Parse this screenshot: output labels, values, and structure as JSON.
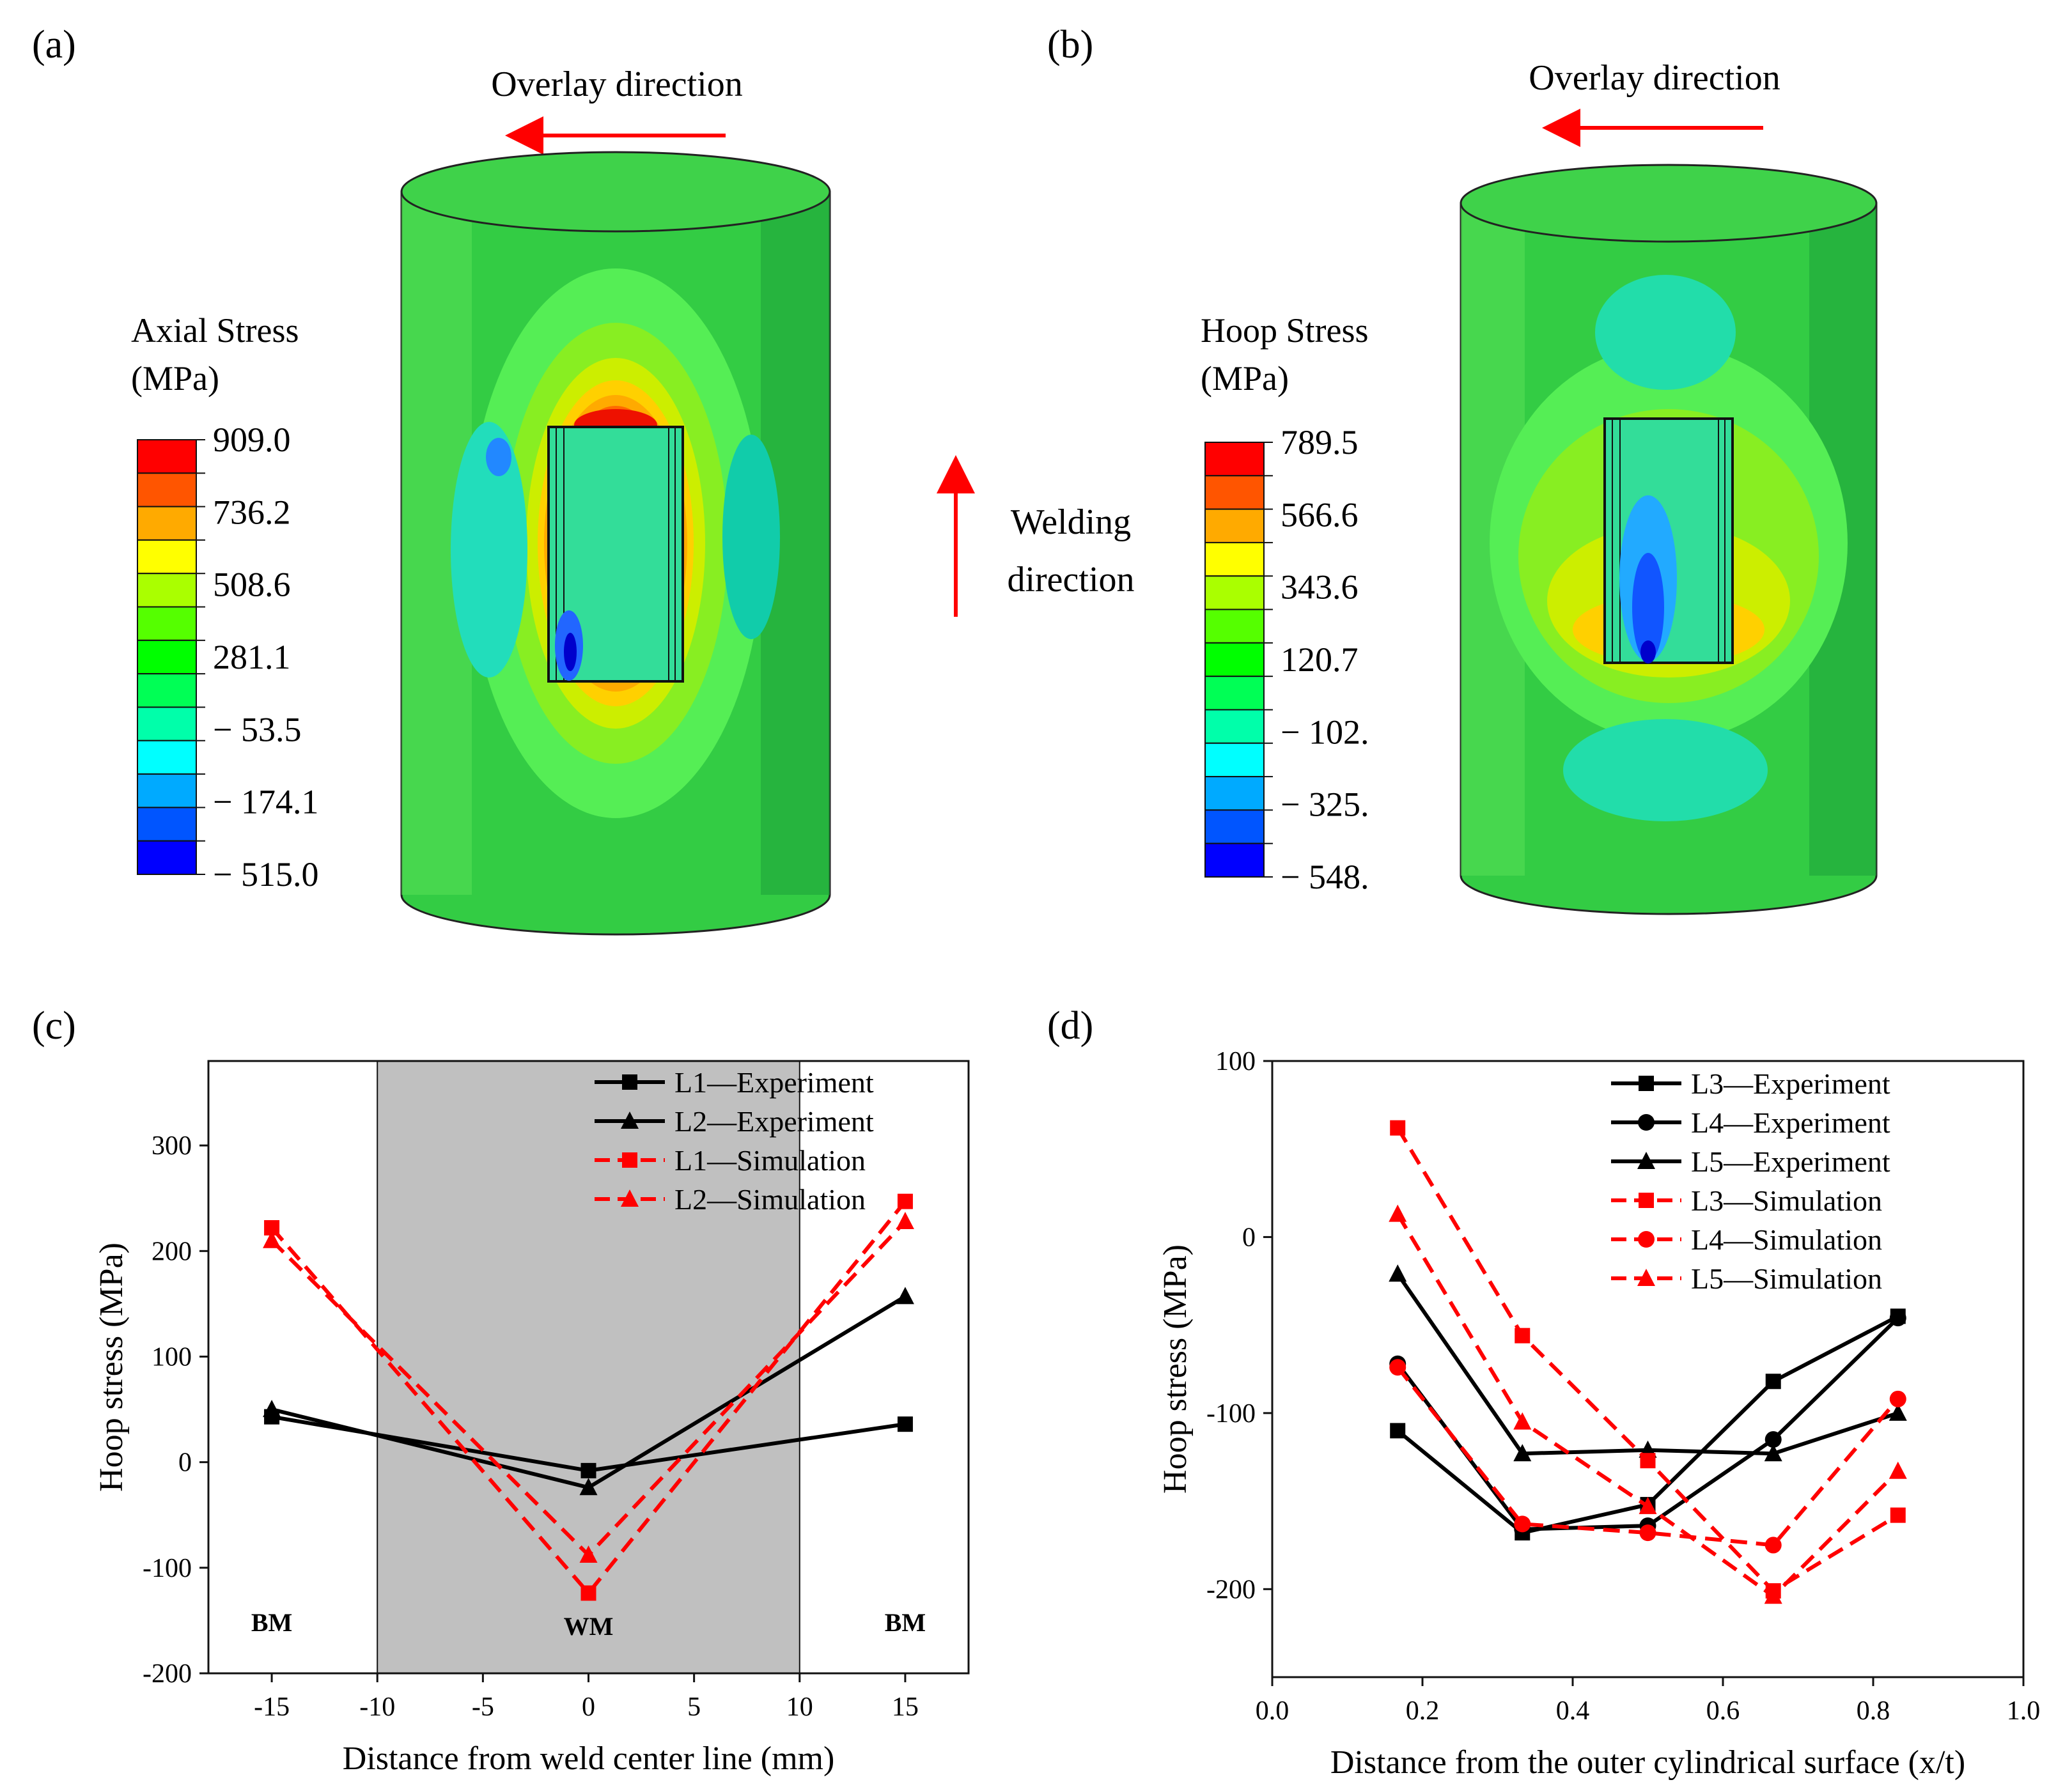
{
  "panels": {
    "a": {
      "label": "(a)",
      "arrow_text": "Overlay direction",
      "legend_title": [
        "Axial Stress",
        "(MPa)"
      ],
      "legend_values": [
        "909.0",
        "736.2",
        "508.6",
        "281.1",
        "− 53.5",
        "− 174.1",
        "− 515.0"
      ],
      "welding_text": [
        "Welding",
        "direction"
      ]
    },
    "b": {
      "label": "(b)",
      "arrow_text": "Overlay direction",
      "legend_title": [
        "Hoop Stress",
        "(MPa)"
      ],
      "legend_values": [
        "789.5",
        "566.6",
        "343.6",
        "120.7",
        "− 102.",
        "− 325.",
        "− 548."
      ]
    },
    "c": {
      "label": "(c)",
      "regions": [
        "BM",
        "WM",
        "BM"
      ]
    },
    "d": {
      "label": "(d)"
    }
  },
  "colors": {
    "contour": [
      "#ff0000",
      "#ff5500",
      "#ffaa00",
      "#ffff00",
      "#aaff00",
      "#55ff00",
      "#00ff00",
      "#00ff55",
      "#00ffaa",
      "#00ffff",
      "#00aaff",
      "#0055ff",
      "#0000ff"
    ],
    "cylinder": "#4fcf4f",
    "experiment": "#000000",
    "simulation": "#ff0000",
    "arrow": "#ff0000",
    "shade": "#c0c0c0"
  },
  "chart_data": [
    {
      "id": "c",
      "type": "line",
      "xlabel": "Distance from weld center line (mm)",
      "ylabel": "Hoop stress (MPa)",
      "xlim": [
        -18,
        18
      ],
      "ylim": [
        -200,
        380
      ],
      "xticks": [
        -15,
        -10,
        -5,
        0,
        5,
        10,
        15
      ],
      "yticks": [
        -200,
        -100,
        0,
        100,
        200,
        300
      ],
      "shaded_x": [
        -10,
        10
      ],
      "series": [
        {
          "name": "L1—Experiment",
          "marker": "square",
          "dash": false,
          "color": "#000000",
          "x": [
            -15,
            0,
            15
          ],
          "y": [
            43,
            -8,
            36
          ]
        },
        {
          "name": "L2—Experiment",
          "marker": "triangle",
          "dash": false,
          "color": "#000000",
          "x": [
            -15,
            0,
            15
          ],
          "y": [
            50,
            -24,
            157
          ]
        },
        {
          "name": "L1—Simulation",
          "marker": "square",
          "dash": true,
          "color": "#ff0000",
          "x": [
            -15,
            0,
            15
          ],
          "y": [
            222,
            -124,
            247
          ]
        },
        {
          "name": "L2—Simulation",
          "marker": "triangle",
          "dash": true,
          "color": "#ff0000",
          "x": [
            -15,
            0,
            15
          ],
          "y": [
            210,
            -88,
            228
          ]
        }
      ]
    },
    {
      "id": "d",
      "type": "line",
      "xlabel": "Distance from the outer cylindrical surface (x/t)",
      "ylabel": "Hoop stress (MPa)",
      "xlim": [
        0.0,
        1.0
      ],
      "ylim": [
        -250,
        100
      ],
      "xticks": [
        0.0,
        0.2,
        0.4,
        0.6,
        0.8,
        1.0
      ],
      "xtick_labels": [
        "0.0",
        "0.2",
        "0.4",
        "0.6",
        "0.8",
        "1.0"
      ],
      "yticks": [
        -200,
        -100,
        0,
        100
      ],
      "series": [
        {
          "name": "L3—Experiment",
          "marker": "square",
          "dash": false,
          "color": "#000000",
          "x": [
            0.167,
            0.333,
            0.5,
            0.667,
            0.833
          ],
          "y": [
            -110,
            -168,
            -152,
            -82,
            -45
          ]
        },
        {
          "name": "L4—Experiment",
          "marker": "circle",
          "dash": false,
          "color": "#000000",
          "x": [
            0.167,
            0.333,
            0.5,
            0.667,
            0.833
          ],
          "y": [
            -72,
            -166,
            -164,
            -115,
            -46
          ]
        },
        {
          "name": "L5—Experiment",
          "marker": "triangle",
          "dash": false,
          "color": "#000000",
          "x": [
            0.167,
            0.333,
            0.5,
            0.667,
            0.833
          ],
          "y": [
            -21,
            -123,
            -121,
            -123,
            -100
          ]
        },
        {
          "name": "L3—Simulation",
          "marker": "square",
          "dash": true,
          "color": "#ff0000",
          "x": [
            0.167,
            0.333,
            0.5,
            0.667,
            0.833
          ],
          "y": [
            62,
            -56,
            -127,
            -201,
            -158
          ]
        },
        {
          "name": "L4—Simulation",
          "marker": "circle",
          "dash": true,
          "color": "#ff0000",
          "x": [
            0.167,
            0.333,
            0.5,
            0.667,
            0.833
          ],
          "y": [
            -74,
            -163,
            -168,
            -175,
            -92
          ]
        },
        {
          "name": "L5—Simulation",
          "marker": "triangle",
          "dash": true,
          "color": "#ff0000",
          "x": [
            0.167,
            0.333,
            0.5,
            0.667,
            0.833
          ],
          "y": [
            13,
            -105,
            -153,
            -204,
            -133
          ]
        }
      ]
    }
  ]
}
